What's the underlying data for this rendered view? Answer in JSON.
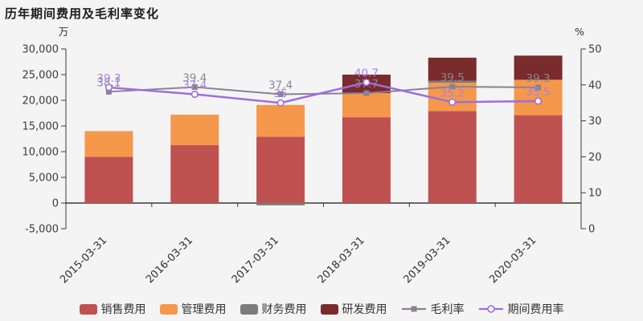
{
  "title": "历年期间费用及毛利率变化",
  "chart_data": {
    "type": "bar",
    "title": "历年期间费用及毛利率变化",
    "left_axis": {
      "unit": "万",
      "min": -5000,
      "max": 30000,
      "step": 5000
    },
    "right_axis": {
      "unit": "%",
      "min": 0,
      "max": 50,
      "step": 10
    },
    "grid": false,
    "legend_position": "bottom",
    "categories": [
      "2015-03-31",
      "2016-03-31",
      "2017-03-31",
      "2018-03-31",
      "2019-03-31",
      "2020-03-31"
    ],
    "bar_series": [
      {
        "id": "selling-expense",
        "name": "销售费用",
        "color": "#c05151",
        "values": [
          9000,
          11300,
          12900,
          16700,
          17900,
          17100
        ]
      },
      {
        "id": "admin-expense",
        "name": "管理费用",
        "color": "#f5984b",
        "values": [
          5000,
          5900,
          6200,
          4700,
          5500,
          6900
        ]
      },
      {
        "id": "finance-expense",
        "name": "财务费用",
        "color": "#7c7c7c",
        "values": [
          0,
          0,
          -450,
          0,
          400,
          0
        ]
      },
      {
        "id": "rd-expense",
        "name": "研发费用",
        "color": "#7a2b2b",
        "values": [
          0,
          0,
          0,
          3600,
          4500,
          4700
        ]
      }
    ],
    "line_series": [
      {
        "id": "gross-margin",
        "name": "毛利率",
        "color": "#8a8294",
        "label_color": "#8b8496",
        "marker": "square",
        "values": [
          38.1,
          39.4,
          37.4,
          37.7,
          39.5,
          39.3
        ],
        "labels": [
          "38.1",
          "39.4",
          "37.4",
          "37.7",
          "39.5",
          "39.3"
        ]
      },
      {
        "id": "period-expense-ratio",
        "name": "期间费用率",
        "color": "#9e6de0",
        "label_color": "#a681e6",
        "marker": "circle-open",
        "values": [
          39.3,
          37.4,
          35,
          40.7,
          35.2,
          35.5
        ],
        "labels": [
          "39.3",
          "37.4",
          "35",
          "40.7",
          "35.2",
          "35.5"
        ]
      }
    ]
  }
}
